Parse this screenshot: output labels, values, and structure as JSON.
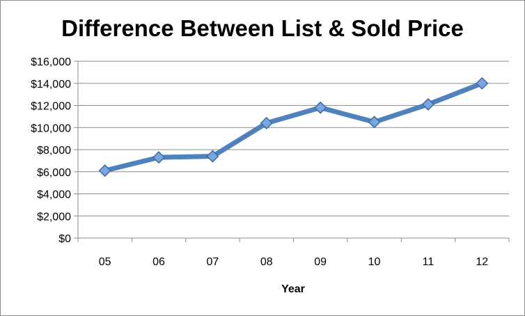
{
  "chart_data": {
    "type": "line",
    "title": "Difference Between List & Sold Price",
    "xlabel": "Year",
    "ylabel": "",
    "categories": [
      "05",
      "06",
      "07",
      "08",
      "09",
      "10",
      "11",
      "12"
    ],
    "series": [
      {
        "values": [
          6100,
          7300,
          7400,
          10400,
          11800,
          10500,
          12100,
          14000
        ]
      }
    ],
    "ylim": [
      0,
      16000
    ],
    "yticks": [
      "$0",
      "$2,000",
      "$4,000",
      "$6,000",
      "$8,000",
      "$10,000",
      "$12,000",
      "$14,000",
      "$16,000"
    ],
    "ytick_values": [
      0,
      2000,
      4000,
      6000,
      8000,
      10000,
      12000,
      14000,
      16000
    ],
    "grid": true,
    "colors": {
      "line": "#4f81bd",
      "marker_fill": "#7aa6e0",
      "marker_stroke": "#3c6aa8",
      "grid": "#8c8c8c"
    }
  }
}
